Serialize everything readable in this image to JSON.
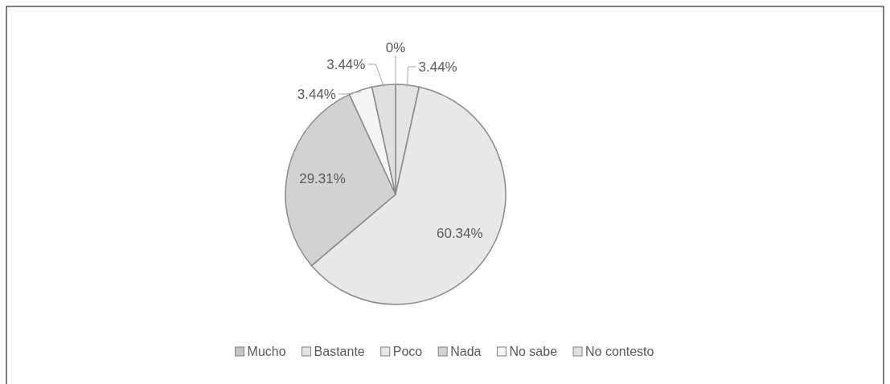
{
  "chart_data": {
    "type": "pie",
    "categories": [
      "Mucho",
      "Bastante",
      "Poco",
      "Nada",
      "No sabe",
      "No contesto"
    ],
    "values": [
      0,
      3.44,
      60.34,
      29.31,
      3.44,
      3.44
    ],
    "colors": [
      "#c4c4c4",
      "#e4e4e4",
      "#e8e8e8",
      "#d2d2d2",
      "#f4f4f4",
      "#e0e0e0"
    ],
    "value_labels": [
      "0%",
      "3.44%",
      "60.34%",
      "29.31%",
      "3.44%",
      "3.44%"
    ],
    "legend": "bottom"
  }
}
